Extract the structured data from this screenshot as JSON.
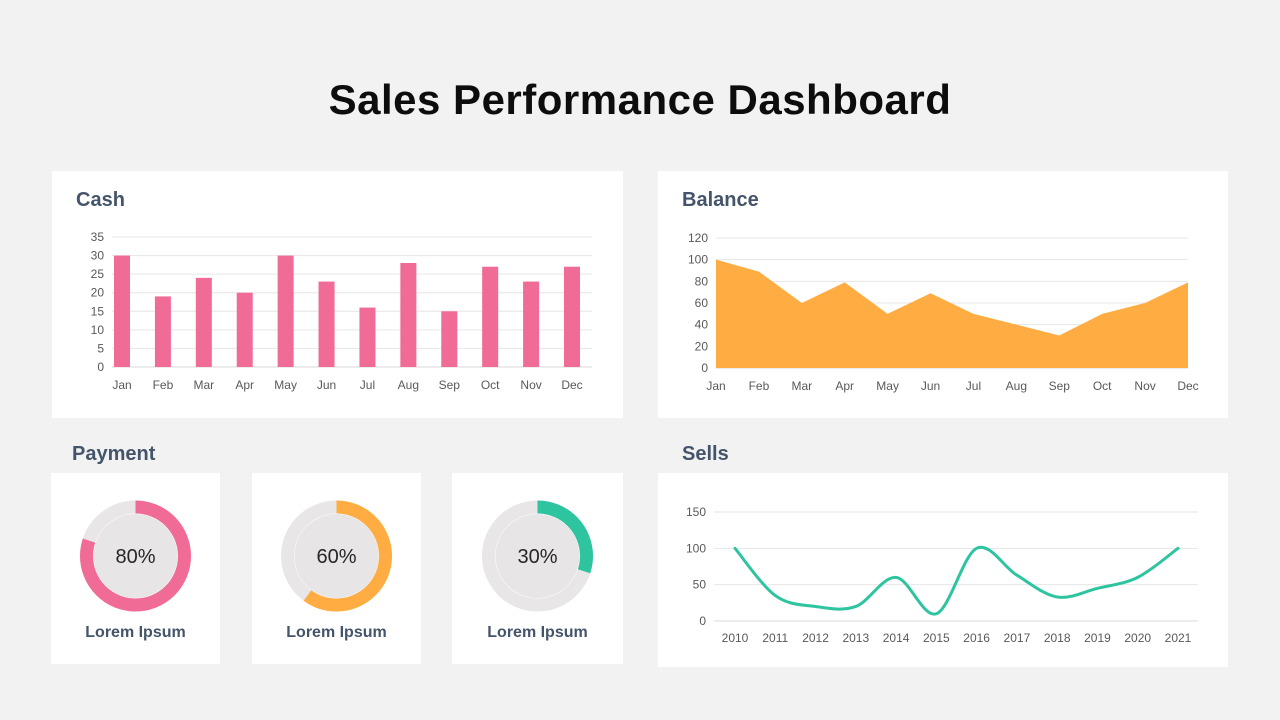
{
  "title": "Sales Performance Dashboard",
  "colors": {
    "pink": "#f06b95",
    "orange": "#ffad42",
    "teal": "#2ec4a0",
    "heading": "#44546a",
    "axis": "#595959",
    "grid": "#e6e6e6"
  },
  "payment": {
    "title": "Payment",
    "items": [
      {
        "percent": 80,
        "label": "80%",
        "caption": "Lorem Ipsum",
        "color": "#f06b95"
      },
      {
        "percent": 60,
        "label": "60%",
        "caption": "Lorem Ipsum",
        "color": "#ffad42"
      },
      {
        "percent": 30,
        "label": "30%",
        "caption": "Lorem Ipsum",
        "color": "#2ec4a0"
      }
    ]
  },
  "chart_data": [
    {
      "type": "bar",
      "title": "Cash",
      "categories": [
        "Jan",
        "Feb",
        "Mar",
        "Apr",
        "May",
        "Jun",
        "Jul",
        "Aug",
        "Sep",
        "Oct",
        "Nov",
        "Dec"
      ],
      "values": [
        30,
        19,
        24,
        20,
        30,
        23,
        16,
        28,
        15,
        27,
        23,
        27
      ],
      "ylim": [
        0,
        35
      ],
      "yticks": [
        0,
        5,
        10,
        15,
        20,
        25,
        30,
        35
      ],
      "color": "#f06b95",
      "grid": true
    },
    {
      "type": "area",
      "title": "Balance",
      "categories": [
        "Jan",
        "Feb",
        "Mar",
        "Apr",
        "May",
        "Jun",
        "Jul",
        "Aug",
        "Sep",
        "Oct",
        "Nov",
        "Dec"
      ],
      "values": [
        100,
        89,
        60,
        79,
        50,
        69,
        50,
        40,
        30,
        50,
        60,
        79
      ],
      "ylim": [
        0,
        120
      ],
      "yticks": [
        0,
        20,
        40,
        60,
        80,
        100,
        120
      ],
      "color": "#ffad42",
      "grid": true
    },
    {
      "type": "line",
      "title": "Sells",
      "categories": [
        "2010",
        "2011",
        "2012",
        "2013",
        "2014",
        "2015",
        "2016",
        "2017",
        "2018",
        "2019",
        "2020",
        "2021"
      ],
      "values": [
        100,
        35,
        20,
        20,
        60,
        10,
        100,
        63,
        33,
        45,
        60,
        100
      ],
      "ylim": [
        0,
        150
      ],
      "yticks": [
        0,
        50,
        100,
        150
      ],
      "color": "#2ec4a0",
      "grid": true,
      "smooth": true
    }
  ]
}
